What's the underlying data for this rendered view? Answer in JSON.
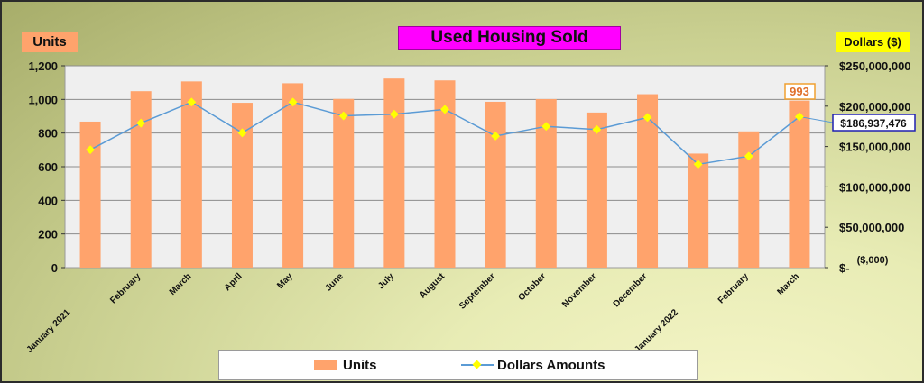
{
  "chart_data": {
    "type": "bar",
    "title": "Used Housing Sold",
    "categories": [
      "January 2021",
      "February",
      "March",
      "April",
      "May",
      "June",
      "July",
      "August",
      "September",
      "October",
      "November",
      "December",
      "January 2022",
      "February",
      "March"
    ],
    "series": [
      {
        "name": "Units",
        "type": "bar",
        "axis": "left",
        "color": "#ffa36c",
        "values": [
          868,
          1049,
          1107,
          980,
          1096,
          1003,
          1124,
          1113,
          986,
          1002,
          922,
          1031,
          678,
          810,
          993
        ]
      },
      {
        "name": "Dollars Amounts",
        "type": "line",
        "axis": "right",
        "color": "#5b9bd5",
        "marker_color": "#ffff00",
        "values": [
          146000000,
          179000000,
          205000000,
          167000000,
          205000000,
          188000000,
          190000000,
          196000000,
          163000000,
          175000000,
          171000000,
          186000000,
          128000000,
          138000000,
          186937476
        ]
      }
    ],
    "left_axis": {
      "label": "Units",
      "min": 0,
      "max": 1200,
      "step": 200,
      "ticks": [
        "0",
        "200",
        "400",
        "600",
        "800",
        "1,000",
        "1,200"
      ]
    },
    "right_axis": {
      "label": "Dollars ($)",
      "min": 0,
      "max": 250000000,
      "step": 50000000,
      "ticks": [
        "$-",
        "$50,000,000",
        "$100,000,000",
        "$150,000,000",
        "$200,000,000",
        "$250,000,000"
      ],
      "unit_note": "($,000)"
    },
    "annotations": {
      "last_units": "993",
      "last_dollars": "$186,937,476"
    },
    "legend": {
      "placement": "bottom",
      "entries": [
        "Units",
        "Dollars Amounts"
      ]
    },
    "grid": true
  }
}
